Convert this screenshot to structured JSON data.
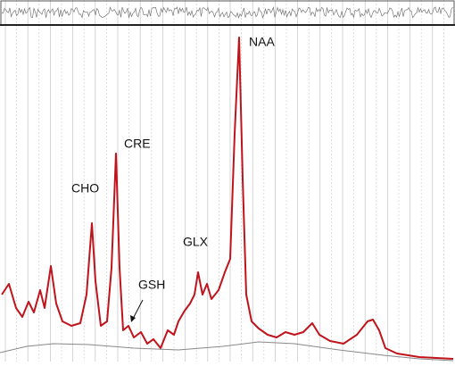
{
  "chart_data": {
    "type": "line",
    "annotations": [
      "CHO",
      "CRE",
      "GSH",
      "GLX",
      "NAA"
    ],
    "x": [
      2,
      10,
      18,
      25,
      32,
      38,
      45,
      50,
      57,
      63,
      70,
      80,
      90,
      97,
      103,
      107,
      113,
      120,
      125,
      130,
      134,
      138,
      144,
      150,
      158,
      165,
      172,
      180,
      188,
      195,
      200,
      207,
      213,
      218,
      222,
      227,
      232,
      237,
      245,
      252,
      258,
      263,
      268,
      272,
      276,
      282,
      290,
      300,
      310,
      320,
      330,
      340,
      350,
      358,
      370,
      385,
      400,
      412,
      418,
      425,
      432,
      445,
      470,
      508
    ],
    "xlim": [
      0,
      510
    ],
    "ylim": [
      -5,
      365
    ],
    "grid": true,
    "series": [
      {
        "color": "#c0141c",
        "values": [
          70,
          82,
          55,
          45,
          62,
          50,
          75,
          55,
          102,
          60,
          40,
          35,
          38,
          70,
          150,
          85,
          35,
          40,
          100,
          228,
          100,
          30,
          35,
          22,
          28,
          15,
          20,
          10,
          30,
          25,
          40,
          52,
          60,
          70,
          95,
          70,
          82,
          65,
          75,
          95,
          110,
          250,
          358,
          200,
          70,
          40,
          32,
          25,
          22,
          28,
          25,
          28,
          38,
          25,
          18,
          15,
          25,
          40,
          42,
          30,
          10,
          4,
          0,
          -2
        ]
      },
      {
        "color": "#888888",
        "x": [
          0,
          30,
          60,
          100,
          150,
          200,
          250,
          290,
          330,
          380,
          430,
          470,
          508
        ],
        "values": [
          5,
          12,
          15,
          14,
          10,
          8,
          12,
          17,
          15,
          8,
          2,
          -2,
          -4
        ]
      }
    ]
  }
}
